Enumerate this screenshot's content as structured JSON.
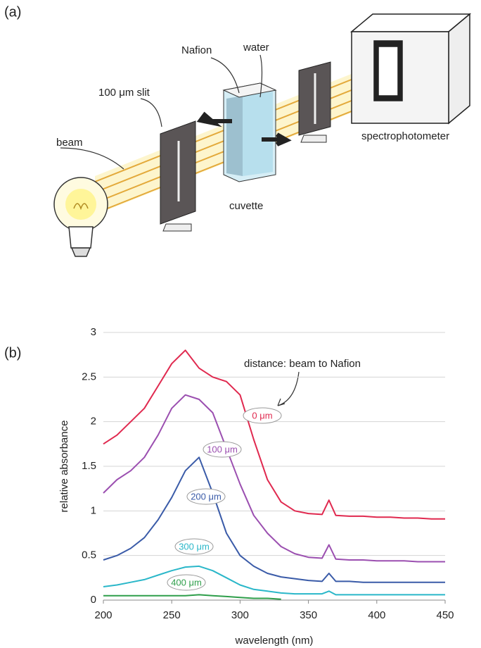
{
  "panel_labels": [
    "(a)",
    "(b)"
  ],
  "diagram": {
    "labels": {
      "nafion": "Nafion",
      "water": "water",
      "slit": "100 μm slit",
      "beam": "beam",
      "cuvette": "cuvette",
      "spectrophotometer": "spectrophotometer"
    }
  },
  "chart_data": {
    "type": "line",
    "xlabel": "wavelength (nm)",
    "ylabel": "relative absorbance",
    "annotation": "distance: beam to Nafion",
    "x": [
      200,
      210,
      220,
      230,
      240,
      250,
      260,
      270,
      280,
      290,
      300,
      310,
      320,
      330,
      340,
      350,
      360,
      365,
      370,
      380,
      390,
      400,
      410,
      420,
      430,
      440,
      450
    ],
    "series": [
      {
        "name": "0 μm",
        "color": "#e0294f",
        "values": [
          1.75,
          1.85,
          2.0,
          2.15,
          2.4,
          2.65,
          2.8,
          2.6,
          2.5,
          2.45,
          2.3,
          1.8,
          1.35,
          1.1,
          1.0,
          0.97,
          0.96,
          1.12,
          0.95,
          0.94,
          0.94,
          0.93,
          0.93,
          0.92,
          0.92,
          0.91,
          0.91
        ]
      },
      {
        "name": "100 μm",
        "color": "#9b4fb0",
        "values": [
          1.2,
          1.35,
          1.45,
          1.6,
          1.85,
          2.15,
          2.3,
          2.25,
          2.1,
          1.7,
          1.3,
          0.95,
          0.75,
          0.6,
          0.52,
          0.48,
          0.47,
          0.62,
          0.46,
          0.45,
          0.45,
          0.44,
          0.44,
          0.44,
          0.43,
          0.43,
          0.43
        ]
      },
      {
        "name": "200 μm",
        "color": "#3a5ba8",
        "values": [
          0.45,
          0.5,
          0.58,
          0.7,
          0.9,
          1.15,
          1.45,
          1.6,
          1.2,
          0.75,
          0.5,
          0.38,
          0.3,
          0.26,
          0.24,
          0.22,
          0.21,
          0.3,
          0.21,
          0.21,
          0.2,
          0.2,
          0.2,
          0.2,
          0.2,
          0.2,
          0.2
        ]
      },
      {
        "name": "300 μm",
        "color": "#2ab7c9",
        "values": [
          0.15,
          0.17,
          0.2,
          0.23,
          0.28,
          0.33,
          0.37,
          0.38,
          0.33,
          0.25,
          0.17,
          0.12,
          0.1,
          0.08,
          0.07,
          0.07,
          0.07,
          0.1,
          0.06,
          0.06,
          0.06,
          0.06,
          0.06,
          0.06,
          0.06,
          0.06,
          0.06
        ]
      },
      {
        "name": "400 μm",
        "color": "#2e9e4a",
        "values": [
          0.05,
          0.05,
          0.05,
          0.05,
          0.05,
          0.05,
          0.05,
          0.06,
          0.05,
          0.04,
          0.03,
          0.02,
          0.02,
          0.01,
          null,
          null,
          null,
          null,
          null,
          null,
          null,
          null,
          null,
          null,
          null,
          null,
          null
        ]
      }
    ],
    "xlim": [
      200,
      450
    ],
    "xticks": [
      200,
      250,
      300,
      350,
      400,
      450
    ],
    "ylim": [
      0,
      3
    ],
    "yticks": [
      0,
      0.5,
      1,
      1.5,
      2,
      2.5,
      3
    ],
    "grid": true
  }
}
